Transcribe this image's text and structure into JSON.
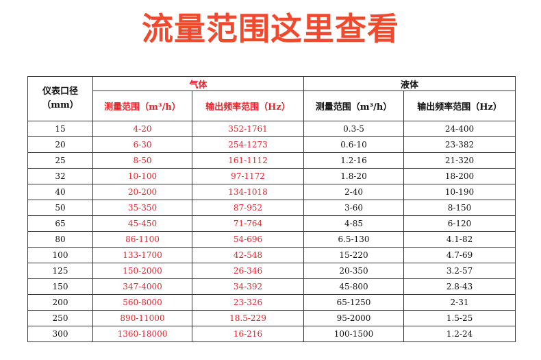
{
  "title": "流量范围这里查看",
  "colors": {
    "title": "#f04a2e",
    "gas": "#e8222a",
    "liquid": "#111111",
    "border": "#333333"
  },
  "table": {
    "diameter_header": {
      "line1": "仪表口径",
      "line2": "（mm）"
    },
    "gas_header": "气体",
    "liquid_header": "液体",
    "gas_columns": [
      "测量范围（m³/h）",
      "输出频率范围（Hz）"
    ],
    "liquid_columns": [
      "测量范围（m³/h）",
      "输出频率范围（Hz）"
    ],
    "rows": [
      {
        "diameter": "15",
        "gas_range": "4-20",
        "gas_freq": "352-1761",
        "liquid_range": "0.3-5",
        "liquid_freq": "24-400"
      },
      {
        "diameter": "20",
        "gas_range": "6-30",
        "gas_freq": "254-1273",
        "liquid_range": "0.6-10",
        "liquid_freq": "23-382"
      },
      {
        "diameter": "25",
        "gas_range": "8-50",
        "gas_freq": "161-1112",
        "liquid_range": "1.2-16",
        "liquid_freq": "21-320"
      },
      {
        "diameter": "32",
        "gas_range": "10-100",
        "gas_freq": "97-1172",
        "liquid_range": "1.8-20",
        "liquid_freq": "18-200"
      },
      {
        "diameter": "40",
        "gas_range": "20-200",
        "gas_freq": "134-1018",
        "liquid_range": "2-40",
        "liquid_freq": "10-190"
      },
      {
        "diameter": "50",
        "gas_range": "35-350",
        "gas_freq": "87-952",
        "liquid_range": "3-60",
        "liquid_freq": "8-150"
      },
      {
        "diameter": "65",
        "gas_range": "45-450",
        "gas_freq": "71-764",
        "liquid_range": "4-85",
        "liquid_freq": "6-120"
      },
      {
        "diameter": "80",
        "gas_range": "86-1100",
        "gas_freq": "54-696",
        "liquid_range": "6.5-130",
        "liquid_freq": "4.1-82"
      },
      {
        "diameter": "100",
        "gas_range": "133-1700",
        "gas_freq": "42-548",
        "liquid_range": "15-220",
        "liquid_freq": "4.7-69"
      },
      {
        "diameter": "125",
        "gas_range": "150-2000",
        "gas_freq": "26-346",
        "liquid_range": "20-350",
        "liquid_freq": "3.2-57"
      },
      {
        "diameter": "150",
        "gas_range": "347-4000",
        "gas_freq": "34-392",
        "liquid_range": "45-800",
        "liquid_freq": "2.8-43"
      },
      {
        "diameter": "200",
        "gas_range": "560-8000",
        "gas_freq": "23-326",
        "liquid_range": "65-1250",
        "liquid_freq": "2-31"
      },
      {
        "diameter": "250",
        "gas_range": "890-11000",
        "gas_freq": "18.5-229",
        "liquid_range": "95-2000",
        "liquid_freq": "1.5-25"
      },
      {
        "diameter": "300",
        "gas_range": "1360-18000",
        "gas_freq": "16-216",
        "liquid_range": "100-1500",
        "liquid_freq": "1.2-24"
      }
    ]
  }
}
